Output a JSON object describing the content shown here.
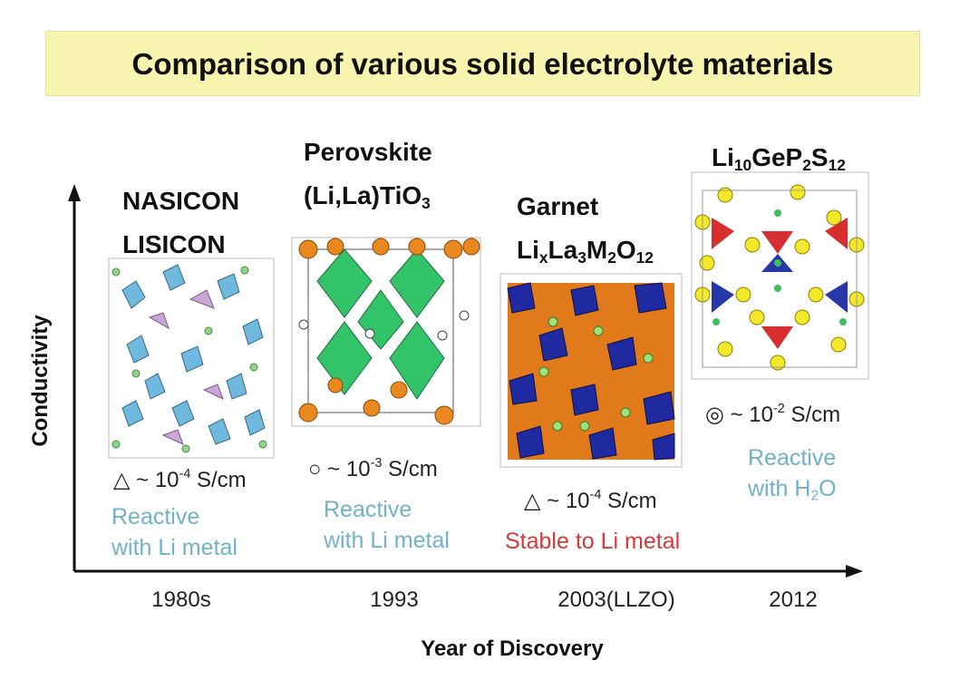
{
  "title": "Comparison of various solid electrolyte materials",
  "axes": {
    "y_label": "Conductivity",
    "x_label": "Year of Discovery"
  },
  "materials": [
    {
      "name_lines": [
        [
          "NASICON"
        ],
        [
          "LISICON"
        ]
      ],
      "conductivity": {
        "symbol": "△",
        "base": "~ 10",
        "exponent": "-4",
        "unit": "S/cm"
      },
      "note_lines": [
        [
          "Reactive"
        ],
        [
          "with Li metal"
        ]
      ],
      "note_color": "#6fb2c9",
      "year": "1980s"
    },
    {
      "name_lines": [
        [
          "Perovskite"
        ],
        [
          "(Li,La)TiO",
          "3"
        ]
      ],
      "conductivity": {
        "symbol": "○",
        "base": "~ 10",
        "exponent": "-3",
        "unit": "S/cm"
      },
      "note_lines": [
        [
          "Reactive"
        ],
        [
          "with Li metal"
        ]
      ],
      "note_color": "#6fb2c9",
      "year": "1993"
    },
    {
      "name_lines": [
        [
          "Garnet"
        ],
        [
          "Li",
          "x",
          "La",
          "3",
          "M",
          "2",
          "O",
          "12"
        ]
      ],
      "conductivity": {
        "symbol": "△",
        "base": "~ 10",
        "exponent": "-4",
        "unit": "S/cm"
      },
      "note_lines": [
        [
          "Stable to Li metal"
        ]
      ],
      "note_color": "#d23b3b",
      "year": "2003(LLZO)"
    },
    {
      "name_lines": [
        [
          "Li",
          "10",
          "GeP",
          "2",
          "S",
          "12"
        ]
      ],
      "conductivity": {
        "symbol": "◎",
        "base": "~ 10",
        "exponent": "-2",
        "unit": "S/cm"
      },
      "note_lines": [
        [
          "Reactive"
        ],
        [
          "with H",
          "2",
          "O"
        ]
      ],
      "note_color": "#6fb2c9",
      "year": "2012"
    }
  ]
}
